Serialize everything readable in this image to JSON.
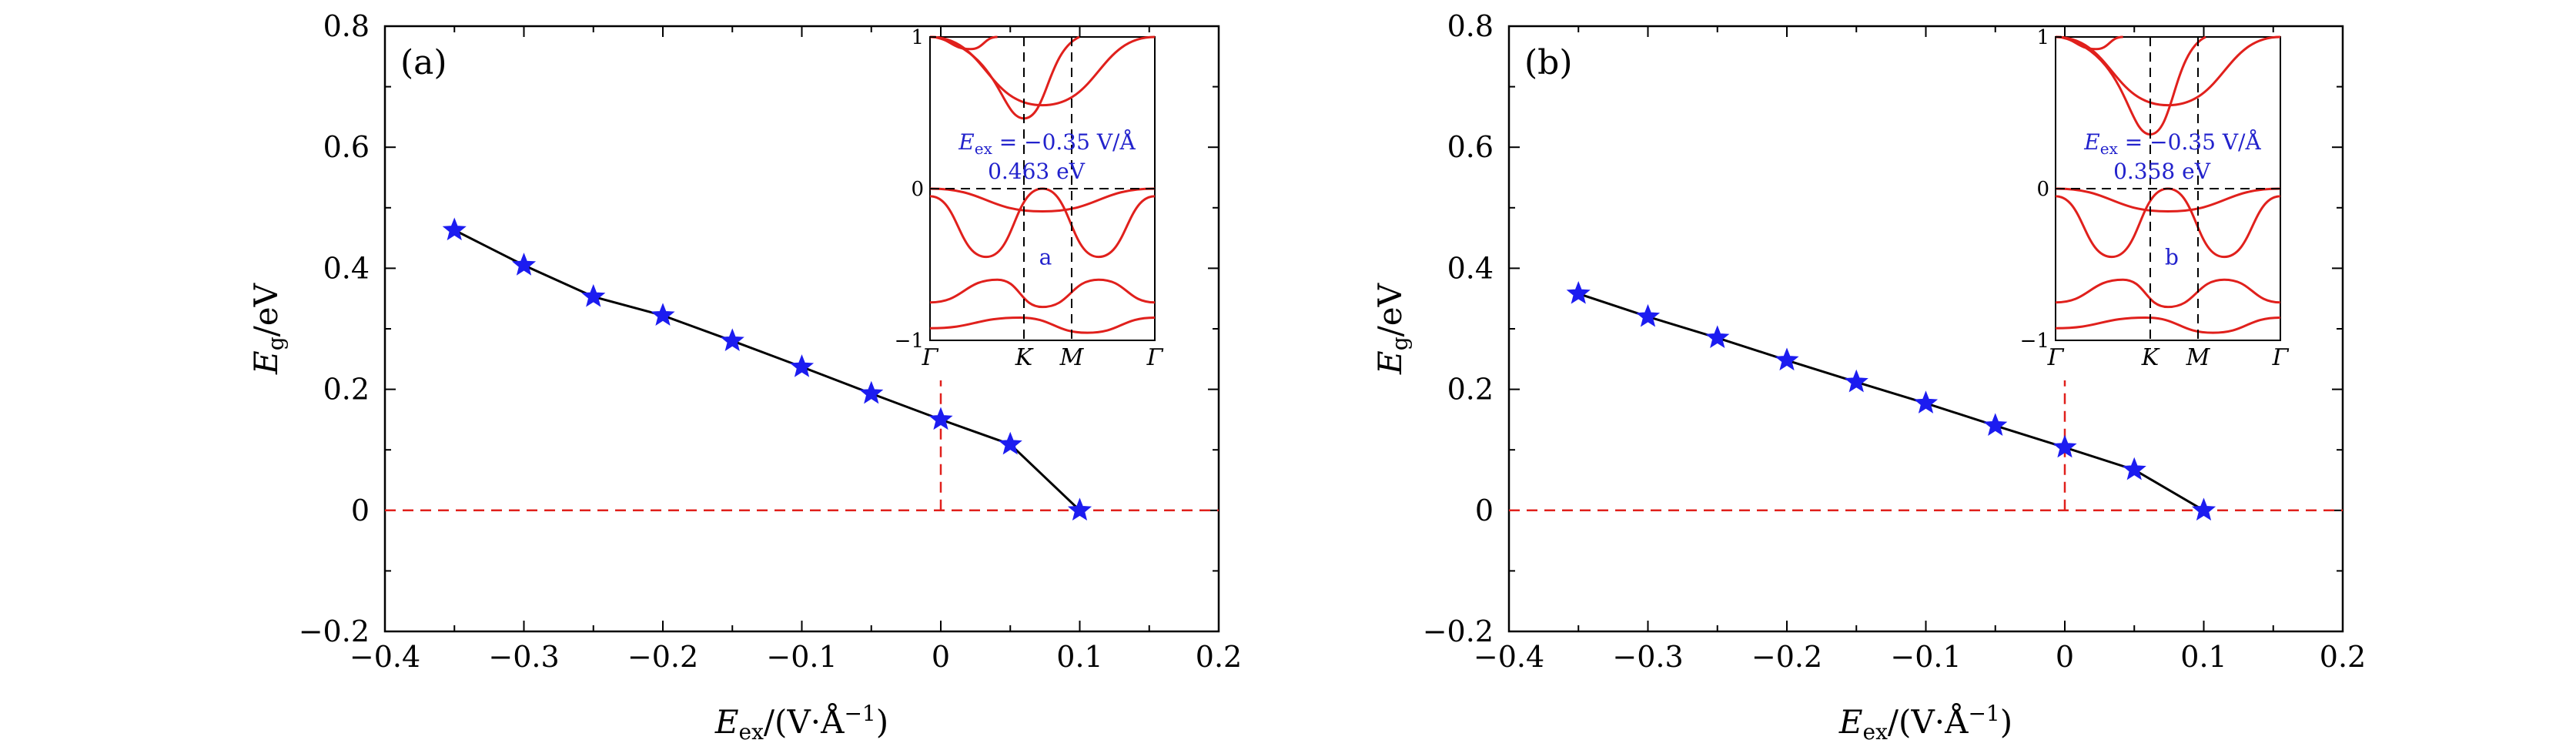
{
  "colors": {
    "line": "#000000",
    "marker": "#1c1cf0",
    "reference": "#e0201c",
    "band": "#e0201c",
    "inset_text": "#2222cc",
    "axis": "#000000"
  },
  "axes": {
    "xlabel_main": "E",
    "xlabel_sub": "ex",
    "xlabel_units": "/(V·Å",
    "xlabel_exp": "−1",
    "xlabel_close": ")",
    "ylabel_main": "E",
    "ylabel_sub": "g",
    "ylabel_units": "/eV",
    "x_tick_labels": [
      "−0.4",
      "−0.3",
      "−0.2",
      "−0.1",
      "0",
      "0.1",
      "0.2"
    ],
    "y_tick_labels": [
      "−0.2",
      "0",
      "0.2",
      "0.4",
      "0.6",
      "0.8"
    ]
  },
  "chart_data": [
    {
      "type": "line",
      "panel": "(a)",
      "title": "",
      "xlabel": "Eex/(V·Å−1)",
      "ylabel": "Eg/eV",
      "xlim": [
        -0.4,
        0.2
      ],
      "ylim": [
        -0.2,
        0.8
      ],
      "x_ticks": [
        -0.4,
        -0.3,
        -0.2,
        -0.1,
        0,
        0.1,
        0.2
      ],
      "y_ticks": [
        -0.2,
        0,
        0.2,
        0.4,
        0.6,
        0.8
      ],
      "series": [
        {
          "name": "Eg",
          "marker": "star",
          "x": [
            -0.35,
            -0.3,
            -0.25,
            -0.2,
            -0.15,
            -0.1,
            -0.05,
            0,
            0.05,
            0.1
          ],
          "values": [
            0.463,
            0.405,
            0.353,
            0.322,
            0.28,
            0.237,
            0.193,
            0.15,
            0.109,
            0
          ]
        }
      ],
      "reference_lines": {
        "y": 0,
        "x": 0
      },
      "inset": {
        "type": "band-structure",
        "y_ticks": [
          -1,
          0,
          1
        ],
        "y_tick_labels": [
          "−1",
          "0",
          "1"
        ],
        "k_points": [
          "Γ",
          "K",
          "M",
          "Γ"
        ],
        "annotation_prefix": "E",
        "annotation_sub": "ex",
        "annotation_value": " = −0.35 V/Å",
        "gap_label": "0.463 eV",
        "marker_label": "a",
        "gap_ev": 0.463
      }
    },
    {
      "type": "line",
      "panel": "(b)",
      "title": "",
      "xlabel": "Eex/(V·Å−1)",
      "ylabel": "Eg/eV",
      "xlim": [
        -0.4,
        0.2
      ],
      "ylim": [
        -0.2,
        0.8
      ],
      "x_ticks": [
        -0.4,
        -0.3,
        -0.2,
        -0.1,
        0,
        0.1,
        0.2
      ],
      "y_ticks": [
        -0.2,
        0,
        0.2,
        0.4,
        0.6,
        0.8
      ],
      "series": [
        {
          "name": "Eg",
          "marker": "star",
          "x": [
            -0.35,
            -0.3,
            -0.25,
            -0.2,
            -0.15,
            -0.1,
            -0.05,
            0,
            0.05,
            0.1
          ],
          "values": [
            0.358,
            0.32,
            0.285,
            0.248,
            0.212,
            0.177,
            0.14,
            0.104,
            0.067,
            0
          ]
        }
      ],
      "reference_lines": {
        "y": 0,
        "x": 0
      },
      "inset": {
        "type": "band-structure",
        "y_ticks": [
          -1,
          0,
          1
        ],
        "y_tick_labels": [
          "−1",
          "0",
          "1"
        ],
        "k_points": [
          "Γ",
          "K",
          "M",
          "Γ"
        ],
        "annotation_prefix": "E",
        "annotation_sub": "ex",
        "annotation_value": " = −0.35 V/Å",
        "gap_label": "0.358 eV",
        "marker_label": "b",
        "gap_ev": 0.358
      }
    }
  ]
}
